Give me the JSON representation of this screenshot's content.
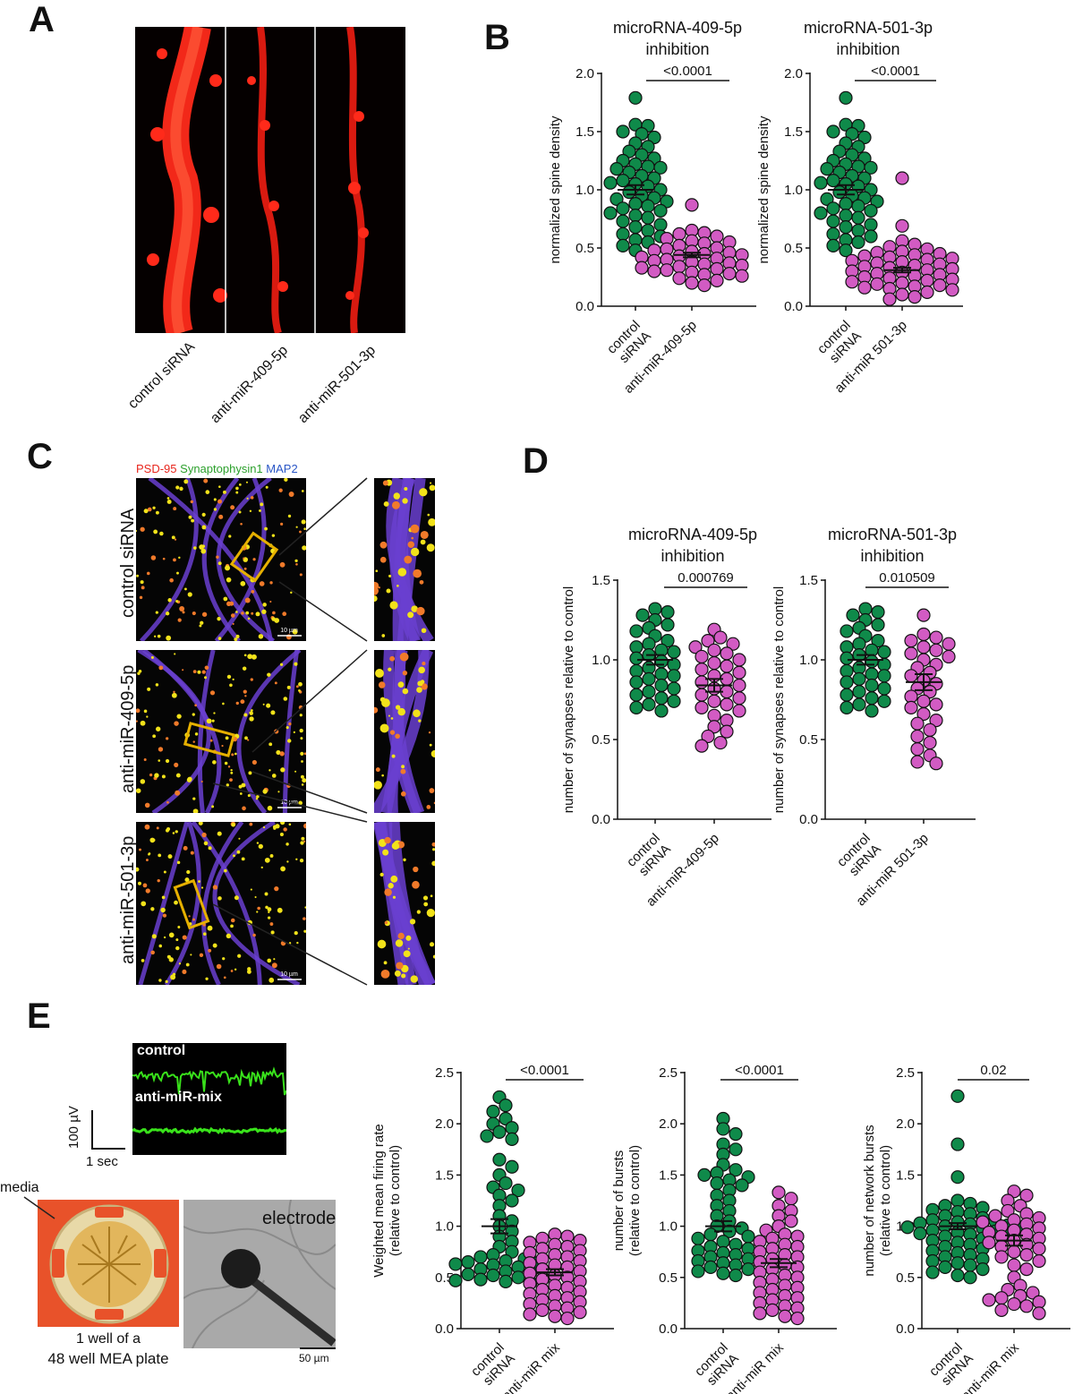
{
  "panels": {
    "A": "A",
    "B": "B",
    "C": "C",
    "D": "D",
    "E": "E"
  },
  "panelA": {
    "lanes": [
      "control siRNA",
      "anti-miR-409-5p",
      "anti-miR-501-3p"
    ],
    "color": "#ff2a1a"
  },
  "panelC": {
    "legend": [
      {
        "text": "PSD-95",
        "color": "#e8251c"
      },
      {
        "text": "Synaptophysin1",
        "color": "#2ca02c"
      },
      {
        "text": "MAP2",
        "color": "#2a56c6"
      }
    ],
    "rows": [
      "control siRNA",
      "anti-miR-409-5p",
      "anti-miR-501-3p"
    ],
    "scalebar": "10 µm",
    "box_color": "#e6b000"
  },
  "panelE": {
    "trace_labels": [
      "control",
      "anti-miR-mix"
    ],
    "scale_v": "100 µV",
    "scale_t": "1 sec",
    "media_label": "media",
    "plate_caption_1": "1 well of a",
    "plate_caption_2": "48 well MEA plate",
    "electrode_label": "electrode",
    "scalebar": "50 µm",
    "trace_color": "#39e21b",
    "media_color": "#e8522a"
  },
  "colors": {
    "control": "#0f8a4a",
    "treated": "#d25bc3"
  },
  "chart_data": [
    {
      "id": "B1",
      "type": "scatter",
      "title": "microRNA-409-5p\ninhibition",
      "ylabel": "normalized spine density",
      "categories": [
        "control\nsiRNA",
        "anti-miR-409-5p"
      ],
      "ylim": [
        0,
        2.0
      ],
      "yticks": [
        0.0,
        0.5,
        1.0,
        1.5,
        2.0
      ],
      "tickfmt": 1,
      "pvalue": "<0.0001",
      "series": [
        {
          "mean": 1.0,
          "sem": 0.04,
          "values": [
            1.79,
            1.56,
            1.55,
            1.5,
            1.48,
            1.45,
            1.4,
            1.37,
            1.33,
            1.3,
            1.27,
            1.25,
            1.22,
            1.2,
            1.19,
            1.18,
            1.15,
            1.12,
            1.1,
            1.08,
            1.06,
            1.05,
            1.03,
            1.0,
            0.98,
            0.95,
            0.93,
            0.92,
            0.9,
            0.88,
            0.86,
            0.84,
            0.82,
            0.8,
            0.78,
            0.76,
            0.73,
            0.7,
            0.68,
            0.65,
            0.62,
            0.6,
            0.57,
            0.55,
            0.52,
            0.48
          ]
        },
        {
          "mean": 0.44,
          "sem": 0.02,
          "values": [
            0.87,
            0.65,
            0.63,
            0.62,
            0.6,
            0.58,
            0.56,
            0.55,
            0.54,
            0.52,
            0.5,
            0.49,
            0.48,
            0.47,
            0.46,
            0.45,
            0.44,
            0.43,
            0.42,
            0.41,
            0.4,
            0.39,
            0.38,
            0.37,
            0.36,
            0.35,
            0.34,
            0.33,
            0.32,
            0.31,
            0.3,
            0.29,
            0.28,
            0.27,
            0.26,
            0.24,
            0.22,
            0.2,
            0.18
          ]
        }
      ]
    },
    {
      "id": "B2",
      "type": "scatter",
      "title": "microRNA-501-3p\ninhibition",
      "ylabel": "normalized spine density",
      "categories": [
        "control\nsiRNA",
        "anti-miR 501-3p"
      ],
      "ylim": [
        0,
        2.0
      ],
      "yticks": [
        0.0,
        0.5,
        1.0,
        1.5,
        2.0
      ],
      "tickfmt": 1,
      "pvalue": "<0.0001",
      "series": [
        {
          "mean": 1.0,
          "sem": 0.04,
          "values": [
            1.79,
            1.56,
            1.55,
            1.5,
            1.48,
            1.45,
            1.4,
            1.37,
            1.33,
            1.3,
            1.27,
            1.25,
            1.22,
            1.2,
            1.19,
            1.18,
            1.15,
            1.12,
            1.1,
            1.08,
            1.06,
            1.05,
            1.03,
            1.0,
            0.98,
            0.95,
            0.93,
            0.92,
            0.9,
            0.88,
            0.86,
            0.84,
            0.82,
            0.8,
            0.78,
            0.76,
            0.73,
            0.7,
            0.68,
            0.65,
            0.62,
            0.6,
            0.57,
            0.55,
            0.52,
            0.48
          ]
        },
        {
          "mean": 0.31,
          "sem": 0.02,
          "values": [
            1.1,
            0.69,
            0.56,
            0.53,
            0.51,
            0.49,
            0.47,
            0.46,
            0.45,
            0.44,
            0.43,
            0.42,
            0.41,
            0.4,
            0.39,
            0.38,
            0.37,
            0.36,
            0.35,
            0.34,
            0.33,
            0.32,
            0.31,
            0.3,
            0.29,
            0.28,
            0.27,
            0.26,
            0.25,
            0.24,
            0.23,
            0.22,
            0.21,
            0.2,
            0.19,
            0.18,
            0.17,
            0.16,
            0.15,
            0.14,
            0.12,
            0.1,
            0.08,
            0.06
          ]
        }
      ]
    },
    {
      "id": "D1",
      "type": "scatter",
      "title": "microRNA-409-5p\ninhibition",
      "ylabel": "number of synapses relative to control",
      "categories": [
        "control\nsiRNA",
        "anti-miR-409-5p"
      ],
      "ylim": [
        0,
        1.5
      ],
      "yticks": [
        0.0,
        0.5,
        1.0,
        1.5
      ],
      "tickfmt": 1,
      "pvalue": "0.000769",
      "series": [
        {
          "mean": 1.0,
          "sem": 0.03,
          "values": [
            1.32,
            1.3,
            1.28,
            1.25,
            1.22,
            1.2,
            1.18,
            1.15,
            1.12,
            1.1,
            1.08,
            1.06,
            1.05,
            1.03,
            1.01,
            0.99,
            0.97,
            0.95,
            0.93,
            0.91,
            0.9,
            0.88,
            0.86,
            0.84,
            0.82,
            0.8,
            0.78,
            0.76,
            0.74,
            0.72,
            0.7,
            0.68
          ]
        },
        {
          "mean": 0.84,
          "sem": 0.04,
          "values": [
            1.19,
            1.14,
            1.12,
            1.1,
            1.08,
            1.06,
            1.04,
            1.02,
            1.0,
            0.98,
            0.96,
            0.94,
            0.92,
            0.9,
            0.88,
            0.86,
            0.84,
            0.82,
            0.8,
            0.78,
            0.76,
            0.74,
            0.72,
            0.7,
            0.68,
            0.65,
            0.62,
            0.58,
            0.55,
            0.52,
            0.48,
            0.46
          ]
        }
      ]
    },
    {
      "id": "D2",
      "type": "scatter",
      "title": "microRNA-501-3p\ninhibition",
      "ylabel": "number of synapses relative to control",
      "categories": [
        "control\nsiRNA",
        "anti-miR 501-3p"
      ],
      "ylim": [
        0,
        1.5
      ],
      "yticks": [
        0.0,
        0.5,
        1.0,
        1.5
      ],
      "tickfmt": 1,
      "pvalue": "0.010509",
      "series": [
        {
          "mean": 1.0,
          "sem": 0.03,
          "values": [
            1.32,
            1.3,
            1.28,
            1.25,
            1.22,
            1.2,
            1.18,
            1.15,
            1.12,
            1.1,
            1.08,
            1.06,
            1.05,
            1.03,
            1.01,
            0.99,
            0.97,
            0.95,
            0.93,
            0.91,
            0.9,
            0.88,
            0.86,
            0.84,
            0.82,
            0.8,
            0.78,
            0.76,
            0.74,
            0.72,
            0.7,
            0.68
          ]
        },
        {
          "mean": 0.86,
          "sem": 0.05,
          "values": [
            1.28,
            1.16,
            1.14,
            1.12,
            1.1,
            1.08,
            1.06,
            1.04,
            1.02,
            1.0,
            0.97,
            0.95,
            0.92,
            0.9,
            0.87,
            0.85,
            0.82,
            0.8,
            0.77,
            0.74,
            0.72,
            0.7,
            0.66,
            0.62,
            0.6,
            0.56,
            0.52,
            0.48,
            0.44,
            0.4,
            0.36,
            0.35
          ]
        }
      ]
    },
    {
      "id": "E1",
      "type": "scatter",
      "title": "",
      "ylabel": "Weighted mean firing rate\n(relative to control)",
      "categories": [
        "control\nsiRNA",
        "anti-miR mix"
      ],
      "ylim": [
        0,
        2.5
      ],
      "yticks": [
        0.0,
        0.5,
        1.0,
        1.5,
        2.0,
        2.5
      ],
      "tickfmt": 1,
      "pvalue": "<0.0001",
      "series": [
        {
          "mean": 1.0,
          "sem": 0.07,
          "values": [
            2.26,
            2.18,
            2.12,
            2.05,
            2.0,
            1.96,
            1.92,
            1.88,
            1.85,
            1.65,
            1.58,
            1.5,
            1.42,
            1.38,
            1.35,
            1.3,
            1.25,
            1.2,
            1.1,
            1.05,
            1.0,
            0.95,
            0.9,
            0.85,
            0.8,
            0.75,
            0.72,
            0.7,
            0.68,
            0.66,
            0.65,
            0.64,
            0.63,
            0.62,
            0.6,
            0.58,
            0.56,
            0.55,
            0.53,
            0.52,
            0.5,
            0.49,
            0.48,
            0.47,
            0.46,
            0.45
          ]
        },
        {
          "mean": 0.55,
          "sem": 0.03,
          "values": [
            0.92,
            0.9,
            0.88,
            0.86,
            0.84,
            0.82,
            0.8,
            0.78,
            0.76,
            0.74,
            0.72,
            0.7,
            0.68,
            0.66,
            0.64,
            0.62,
            0.6,
            0.58,
            0.56,
            0.54,
            0.52,
            0.5,
            0.48,
            0.46,
            0.44,
            0.42,
            0.4,
            0.38,
            0.36,
            0.34,
            0.32,
            0.3,
            0.28,
            0.26,
            0.24,
            0.22,
            0.2,
            0.18,
            0.16,
            0.14,
            0.12,
            0.1
          ]
        }
      ]
    },
    {
      "id": "E2",
      "type": "scatter",
      "title": "",
      "ylabel": "number of bursts\n(relative to control)",
      "categories": [
        "control\nsiRNA",
        "anti-miR mix"
      ],
      "ylim": [
        0,
        2.5
      ],
      "yticks": [
        0.0,
        0.5,
        1.0,
        1.5,
        2.0,
        2.5
      ],
      "tickfmt": 1,
      "pvalue": "<0.0001",
      "series": [
        {
          "mean": 1.0,
          "sem": 0.05,
          "values": [
            2.05,
            1.95,
            1.9,
            1.8,
            1.75,
            1.7,
            1.6,
            1.55,
            1.52,
            1.5,
            1.48,
            1.45,
            1.42,
            1.4,
            1.35,
            1.3,
            1.25,
            1.2,
            1.15,
            1.1,
            1.05,
            1.0,
            0.98,
            0.95,
            0.92,
            0.9,
            0.88,
            0.85,
            0.82,
            0.8,
            0.78,
            0.76,
            0.74,
            0.72,
            0.7,
            0.68,
            0.66,
            0.64,
            0.62,
            0.6,
            0.58,
            0.56,
            0.54,
            0.52
          ]
        },
        {
          "mean": 0.64,
          "sem": 0.04,
          "values": [
            1.33,
            1.27,
            1.2,
            1.15,
            1.1,
            1.05,
            1.0,
            0.96,
            0.92,
            0.9,
            0.88,
            0.85,
            0.82,
            0.8,
            0.78,
            0.75,
            0.72,
            0.7,
            0.68,
            0.65,
            0.62,
            0.6,
            0.58,
            0.55,
            0.52,
            0.5,
            0.48,
            0.45,
            0.42,
            0.4,
            0.38,
            0.35,
            0.32,
            0.3,
            0.28,
            0.25,
            0.22,
            0.2,
            0.18,
            0.15,
            0.12,
            0.1
          ]
        }
      ]
    },
    {
      "id": "E3",
      "type": "scatter",
      "title": "",
      "ylabel": "number of network bursts\n(relative to control)",
      "categories": [
        "control\nsiRNA",
        "anti-miR mix"
      ],
      "ylim": [
        0,
        2.5
      ],
      "yticks": [
        0.0,
        0.5,
        1.0,
        1.5,
        2.0,
        2.5
      ],
      "tickfmt": 1,
      "pvalue": "0.02",
      "series": [
        {
          "mean": 1.0,
          "sem": 0.03,
          "values": [
            2.27,
            1.8,
            1.48,
            1.25,
            1.22,
            1.2,
            1.18,
            1.16,
            1.14,
            1.12,
            1.1,
            1.08,
            1.06,
            1.05,
            1.04,
            1.03,
            1.02,
            1.01,
            1.0,
            0.99,
            0.98,
            0.97,
            0.96,
            0.95,
            0.94,
            0.93,
            0.92,
            0.91,
            0.9,
            0.88,
            0.86,
            0.84,
            0.82,
            0.8,
            0.78,
            0.76,
            0.74,
            0.72,
            0.7,
            0.68,
            0.66,
            0.64,
            0.62,
            0.6,
            0.58,
            0.55,
            0.52,
            0.5
          ]
        },
        {
          "mean": 0.86,
          "sem": 0.05,
          "values": [
            1.34,
            1.3,
            1.25,
            1.2,
            1.15,
            1.12,
            1.1,
            1.08,
            1.06,
            1.04,
            1.02,
            1.0,
            0.98,
            0.96,
            0.94,
            0.92,
            0.9,
            0.88,
            0.86,
            0.84,
            0.82,
            0.8,
            0.78,
            0.75,
            0.72,
            0.7,
            0.66,
            0.62,
            0.58,
            0.5,
            0.42,
            0.38,
            0.35,
            0.32,
            0.3,
            0.28,
            0.26,
            0.24,
            0.22,
            0.18,
            0.15
          ]
        }
      ]
    }
  ]
}
